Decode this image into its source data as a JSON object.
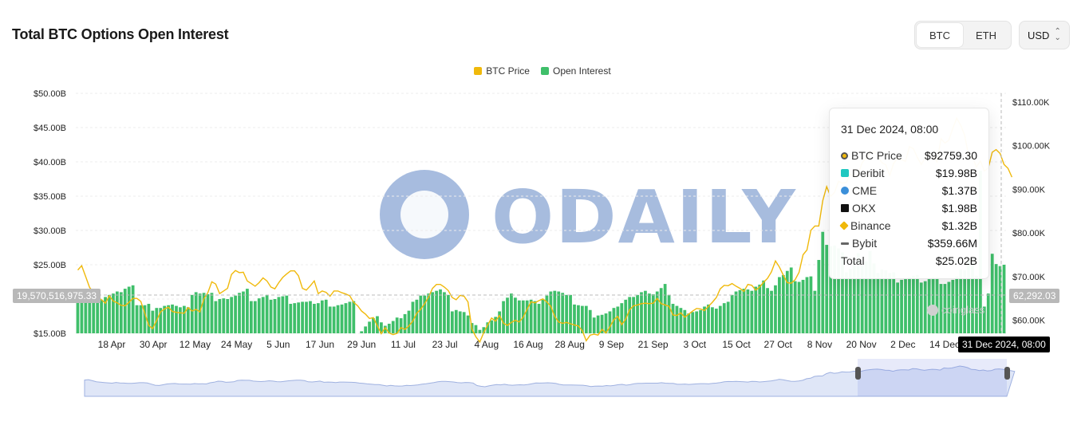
{
  "title": "Total BTC Options Open Interest",
  "asset_toggle": {
    "options": [
      "BTC",
      "ETH"
    ],
    "selected": "BTC"
  },
  "currency": {
    "selected": "USD"
  },
  "legend": [
    {
      "label": "BTC Price",
      "color": "#f0b90b"
    },
    {
      "label": "Open Interest",
      "color": "#3fbf6a"
    }
  ],
  "crosshair": {
    "left_value": "19,570,516,975.33",
    "right_value": "62,292.03",
    "date": "31 Dec 2024, 08:00"
  },
  "tooltip": {
    "date": "31 Dec 2024, 08:00",
    "rows": [
      {
        "label": "BTC Price",
        "value": "$92759.30",
        "icon": "btc-price-icon"
      },
      {
        "label": "Deribit",
        "value": "$19.98B",
        "icon": "deribit-icon"
      },
      {
        "label": "CME",
        "value": "$1.37B",
        "icon": "cme-icon"
      },
      {
        "label": "OKX",
        "value": "$1.98B",
        "icon": "okx-icon"
      },
      {
        "label": "Binance",
        "value": "$1.32B",
        "icon": "binance-icon"
      },
      {
        "label": "Bybit",
        "value": "$359.66M",
        "icon": "bybit-icon"
      }
    ],
    "total_label": "Total",
    "total_value": "$25.02B"
  },
  "watermark": {
    "text": "ODAILY"
  },
  "brand_watermark": {
    "text": "coinglass"
  },
  "chart_data": {
    "type": "bar",
    "title": "Total BTC Options Open Interest",
    "x_tick_labels": [
      "18 Apr",
      "30 Apr",
      "12 May",
      "24 May",
      "5 Jun",
      "17 Jun",
      "29 Jun",
      "11 Jul",
      "23 Jul",
      "4 Aug",
      "16 Aug",
      "28 Aug",
      "9 Sep",
      "21 Sep",
      "3 Oct",
      "15 Oct",
      "27 Oct",
      "8 Nov",
      "20 Nov",
      "2 Dec",
      "14 Dec"
    ],
    "left_axis": {
      "ticks": [
        "$15.00B",
        "$20.00B",
        "$25.00B",
        "$30.00B",
        "$35.00B",
        "$40.00B",
        "$45.00B",
        "$50.00B"
      ],
      "range": [
        15,
        50
      ],
      "unit": "B"
    },
    "right_axis": {
      "ticks": [
        "$60.00K",
        "$70.00K",
        "$80.00K",
        "$90.00K",
        "$100.00K",
        "$110.00K"
      ],
      "range": [
        57,
        112
      ],
      "unit": "K"
    },
    "grid": true,
    "legend_position": "top-center",
    "series": [
      {
        "name": "Open Interest",
        "kind": "bar",
        "axis": "left",
        "color": "#3fbf6a",
        "values": [
          20.8,
          20.9,
          21.3,
          20.8,
          20.8,
          20.0,
          19.9,
          20.3,
          20.6,
          20.8,
          21.1,
          21.0,
          21.5,
          21.8,
          22.0,
          19.1,
          19.1,
          19.1,
          19.3,
          18.3,
          18.7,
          18.7,
          19.0,
          19.1,
          19.2,
          19.0,
          18.8,
          19.0,
          18.8,
          20.6,
          21.0,
          20.8,
          20.9,
          20.7,
          20.9,
          19.7,
          20.0,
          20.1,
          20.0,
          20.3,
          20.5,
          20.9,
          21.1,
          21.5,
          19.7,
          19.7,
          20.1,
          20.3,
          20.6,
          19.9,
          20.0,
          20.3,
          20.4,
          20.5,
          19.3,
          19.4,
          19.5,
          19.6,
          19.6,
          19.7,
          19.3,
          19.4,
          19.8,
          19.9,
          18.9,
          18.9,
          19.1,
          19.2,
          19.4,
          19.6,
          19.7,
          15.0,
          15.3,
          16.0,
          16.7,
          17.2,
          17.5,
          16.6,
          16.1,
          16.4,
          16.8,
          17.3,
          17.2,
          17.8,
          18.3,
          19.6,
          19.9,
          20.5,
          20.5,
          20.8,
          21.0,
          21.2,
          21.4,
          21.0,
          20.6,
          18.2,
          18.4,
          18.2,
          18.1,
          17.6,
          16.5,
          16.2,
          15.5,
          15.9,
          16.6,
          16.9,
          17.4,
          18.2,
          19.7,
          20.2,
          20.8,
          20.2,
          19.8,
          19.8,
          19.8,
          19.9,
          19.7,
          19.3,
          19.9,
          20.5,
          21.1,
          21.2,
          21.1,
          20.9,
          20.6,
          20.6,
          19.2,
          19.1,
          19.0,
          19.0,
          18.4,
          17.3,
          17.6,
          17.7,
          17.9,
          18.2,
          18.7,
          18.9,
          19.4,
          19.9,
          20.3,
          20.3,
          20.6,
          21.0,
          21.2,
          20.8,
          20.7,
          21.1,
          21.6,
          22.2,
          20.6,
          19.3,
          19.0,
          18.7,
          18.4,
          17.9,
          18.1,
          18.2,
          18.4,
          18.9,
          19.2,
          18.8,
          18.6,
          19.0,
          19.4,
          19.6,
          20.6,
          21.1,
          21.3,
          21.5,
          21.4,
          21.2,
          21.8,
          22.1,
          22.7,
          21.6,
          21.2,
          22.0,
          23.2,
          23.5,
          24.1,
          24.6,
          22.6,
          22.5,
          22.8,
          23.2,
          23.3,
          21.2,
          25.7,
          29.8,
          27.9,
          27.7,
          27.8,
          27.4,
          26.8,
          23.9,
          24.4,
          25.6,
          26.7,
          24.9,
          25.5,
          27.0,
          25.2,
          23.8,
          24.3,
          24.2,
          23.8,
          23.9,
          22.4,
          22.8,
          22.9,
          23.2,
          23.4,
          23.5,
          22.4,
          22.6,
          22.9,
          23.2,
          23.2,
          22.2,
          22.2,
          22.5,
          22.8,
          23.3,
          24.3,
          24.2,
          25.7,
          25.2,
          23.4,
          38.7,
          18.9,
          20.8,
          26.6,
          25.1,
          24.8,
          25.0
        ]
      },
      {
        "name": "BTC Price",
        "kind": "line",
        "axis": "right",
        "color": "#f0b90b",
        "values": [
          71.5,
          72.5,
          70.0,
          67.5,
          66.4,
          65.4,
          64.7,
          63.9,
          65.6,
          64.4,
          64.0,
          63.4,
          63.3,
          64.1,
          65.0,
          65.0,
          64.3,
          61.6,
          58.8,
          58.1,
          59.9,
          61.9,
          62.6,
          63.0,
          62.0,
          61.8,
          61.7,
          61.6,
          62.9,
          62.1,
          62.5,
          61.9,
          64.9,
          66.3,
          68.8,
          68.3,
          66.1,
          66.7,
          67.3,
          70.5,
          71.4,
          70.9,
          71.0,
          69.0,
          68.4,
          67.8,
          68.6,
          69.7,
          69.0,
          67.6,
          67.2,
          68.6,
          69.8,
          70.6,
          71.3,
          71.3,
          70.2,
          67.3,
          66.9,
          67.9,
          69.0,
          66.1,
          66.7,
          66.4,
          65.5,
          66.7,
          66.7,
          66.3,
          66.0,
          65.6,
          64.1,
          63.3,
          62.1,
          61.4,
          60.4,
          60.6,
          58.7,
          56.9,
          58.3,
          57.1,
          56.7,
          57.0,
          58.3,
          57.9,
          58.7,
          59.8,
          61.6,
          62.5,
          63.8,
          65.3,
          67.3,
          68.2,
          68.2,
          67.6,
          66.8,
          65.2,
          64.7,
          65.7,
          65.5,
          64.2,
          58.0,
          56.2,
          55.0,
          57.2,
          58.9,
          60.5,
          59.8,
          61.1,
          59.3,
          58.8,
          59.5,
          60.0,
          59.6,
          60.7,
          62.5,
          64.2,
          64.0,
          64.5,
          64.9,
          64.2,
          63.2,
          60.9,
          59.6,
          59.3,
          59.5,
          59.2,
          58.9,
          58.7,
          57.6,
          55.3,
          56.6,
          56.8,
          56.6,
          57.9,
          57.1,
          58.5,
          60.1,
          60.9,
          59.0,
          60.2,
          62.4,
          63.3,
          63.5,
          63.8,
          63.9,
          63.8,
          63.9,
          65.0,
          63.8,
          63.5,
          63.2,
          61.2,
          61.1,
          61.7,
          60.7,
          61.4,
          62.1,
          62.7,
          62.6,
          62.2,
          63.2,
          64.1,
          65.2,
          67.2,
          68.0,
          67.9,
          68.4,
          67.8,
          67.3,
          66.6,
          68.2,
          68.0,
          66.9,
          67.6,
          68.7,
          69.6,
          71.1,
          73.6,
          72.2,
          70.3,
          68.6,
          68.5,
          69.3,
          71.0,
          75.0,
          76.1,
          80.6,
          81.6,
          81.6,
          87.4,
          90.6,
          88.4,
          89.3,
          91.8,
          91.4,
          91.6,
          93.5,
          92.8,
          93.5,
          96.1,
          97.2,
          98.3,
          98.7,
          97.6,
          96.1,
          95.6,
          93.2,
          96.0,
          97.1,
          96.8,
          96.4,
          99.8,
          99.3,
          97.3,
          95.7,
          97.2,
          98.2,
          97.6,
          96.3,
          101.6,
          100.6,
          101.3,
          104.0,
          106.3,
          104.7,
          102.4,
          97.8,
          97.4,
          95.1,
          96.5,
          94.2,
          94.9,
          98.5,
          99.1,
          98.2,
          95.7,
          94.8,
          92.8
        ]
      }
    ],
    "selected_point": {
      "date": "31 Dec 2024, 08:00",
      "open_interest": 25.02,
      "btc_price": 92759.3
    }
  }
}
